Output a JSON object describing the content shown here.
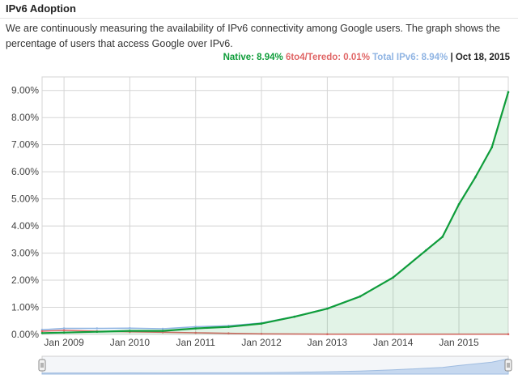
{
  "page": {
    "title": "IPv6 Adoption",
    "description": "We are continuously measuring the availability of IPv6 connectivity among Google users. The graph shows the percentage of users that access Google over IPv6."
  },
  "legend": {
    "native": "Native: 8.94%",
    "sixto4": "6to4/Teredo: 0.01%",
    "total": "Total IPv6: 8.94%",
    "separator": "|",
    "date": "Oct 18, 2015"
  },
  "colors": {
    "native": "#0f9d3a",
    "sixto4": "#e06666",
    "total": "#8fb4e3",
    "grid": "#d5d5d5"
  },
  "chart_data": {
    "type": "area",
    "title": "",
    "xlabel": "",
    "ylabel": "",
    "x_tick_labels": [
      "Jan 2009",
      "Jan 2010",
      "Jan 2011",
      "Jan 2012",
      "Jan 2013",
      "Jan 2014",
      "Jan 2015"
    ],
    "y_tick_labels": [
      "0.00%",
      "1.00%",
      "2.00%",
      "3.00%",
      "4.00%",
      "5.00%",
      "6.00%",
      "7.00%",
      "8.00%",
      "9.00%"
    ],
    "ylim": [
      0,
      9.5
    ],
    "xlim": [
      "2008-09",
      "2015-10"
    ],
    "grid": true,
    "series": [
      {
        "name": "Native",
        "color": "#0f9d3a",
        "x": [
          "2008-09",
          "2009-01",
          "2009-07",
          "2010-01",
          "2010-07",
          "2011-01",
          "2011-07",
          "2012-01",
          "2012-07",
          "2013-01",
          "2013-07",
          "2014-01",
          "2014-07",
          "2014-10",
          "2015-01",
          "2015-04",
          "2015-07",
          "2015-10"
        ],
        "values": [
          0.05,
          0.07,
          0.1,
          0.13,
          0.13,
          0.22,
          0.28,
          0.4,
          0.65,
          0.95,
          1.4,
          2.1,
          3.1,
          3.6,
          4.8,
          5.8,
          6.9,
          8.94
        ]
      },
      {
        "name": "6to4/Teredo",
        "color": "#e06666",
        "x": [
          "2008-09",
          "2009-01",
          "2009-07",
          "2010-01",
          "2010-07",
          "2011-01",
          "2011-07",
          "2012-01",
          "2013-01",
          "2015-10"
        ],
        "values": [
          0.12,
          0.15,
          0.12,
          0.1,
          0.08,
          0.06,
          0.04,
          0.02,
          0.01,
          0.01
        ]
      },
      {
        "name": "Total IPv6",
        "color": "#8fb4e3",
        "x": [
          "2008-09",
          "2009-01",
          "2009-07",
          "2010-01",
          "2010-07",
          "2011-01",
          "2011-07",
          "2012-01",
          "2012-07",
          "2013-01",
          "2013-07",
          "2014-01",
          "2014-07",
          "2014-10",
          "2015-01",
          "2015-04",
          "2015-07",
          "2015-10"
        ],
        "values": [
          0.17,
          0.22,
          0.22,
          0.23,
          0.21,
          0.28,
          0.32,
          0.42,
          0.66,
          0.96,
          1.41,
          2.11,
          3.11,
          3.61,
          4.81,
          5.81,
          6.91,
          8.94
        ]
      }
    ]
  }
}
